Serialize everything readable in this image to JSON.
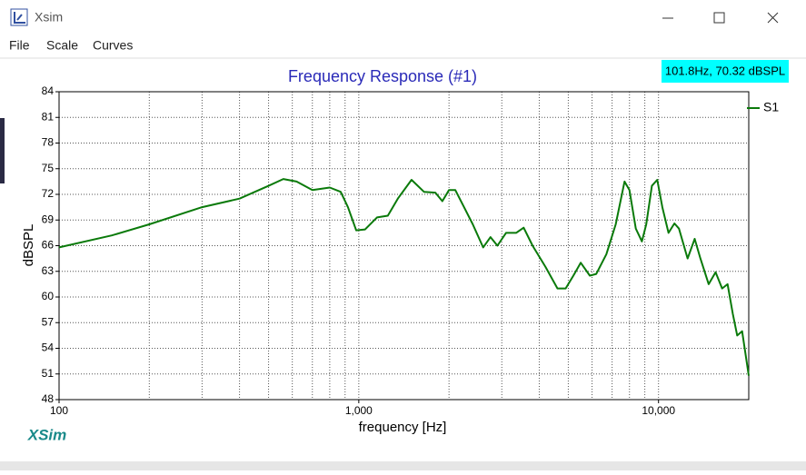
{
  "window": {
    "title": "Xsim",
    "menu": [
      "File",
      "Scale",
      "Curves"
    ]
  },
  "chart_data": {
    "type": "line",
    "title": "Frequency Response (#1)",
    "x_label": "frequency [Hz]",
    "y_label": "dBSPL",
    "readout": "101.8Hz, 70.32 dBSPL",
    "brand": "XSim",
    "x": [
      100,
      150,
      200,
      300,
      400,
      500,
      560,
      620,
      700,
      800,
      870,
      920,
      980,
      1050,
      1150,
      1250,
      1350,
      1500,
      1650,
      1800,
      1900,
      2000,
      2100,
      2400,
      2600,
      2750,
      2900,
      3100,
      3350,
      3550,
      3800,
      4200,
      4600,
      4900,
      5200,
      5500,
      5900,
      6200,
      6700,
      7200,
      7700,
      8000,
      8400,
      8800,
      9100,
      9500,
      9900,
      10300,
      10800,
      11300,
      11700,
      12500,
      13200,
      13800,
      14700,
      15500,
      16300,
      17000,
      17700,
      18300,
      19000,
      20000
    ],
    "series": [
      {
        "name": "S1",
        "color": "#0a7a0a",
        "values": [
          65.8,
          67.2,
          68.5,
          70.5,
          71.5,
          73.0,
          73.8,
          73.5,
          72.5,
          72.8,
          72.3,
          70.5,
          67.8,
          67.9,
          69.3,
          69.5,
          71.5,
          73.7,
          72.3,
          72.2,
          71.2,
          72.5,
          72.5,
          68.5,
          65.8,
          67.0,
          66.0,
          67.5,
          67.5,
          68.1,
          66.0,
          63.5,
          61.0,
          61.0,
          62.5,
          64.0,
          62.5,
          62.7,
          65.0,
          68.5,
          73.5,
          72.5,
          68.0,
          66.5,
          68.5,
          73.0,
          73.7,
          70.5,
          67.5,
          68.6,
          68.0,
          64.5,
          66.8,
          64.5,
          61.5,
          62.9,
          61.0,
          61.5,
          58.0,
          55.5,
          56.0,
          50.8
        ]
      }
    ],
    "xscale": "log",
    "xlim": [
      100,
      20000
    ],
    "xticks": [
      100,
      {
        "value": 1000,
        "label": "1,000"
      },
      {
        "value": 10000,
        "label": "10,000"
      }
    ],
    "x_minor_ticks": [
      200,
      300,
      400,
      500,
      600,
      700,
      800,
      900,
      2000,
      3000,
      4000,
      5000,
      6000,
      7000,
      8000,
      9000
    ],
    "ylim": [
      48,
      84
    ],
    "yticks": [
      48,
      51,
      54,
      57,
      60,
      63,
      66,
      69,
      72,
      75,
      78,
      81,
      84
    ],
    "grid": true,
    "legend": "right"
  }
}
